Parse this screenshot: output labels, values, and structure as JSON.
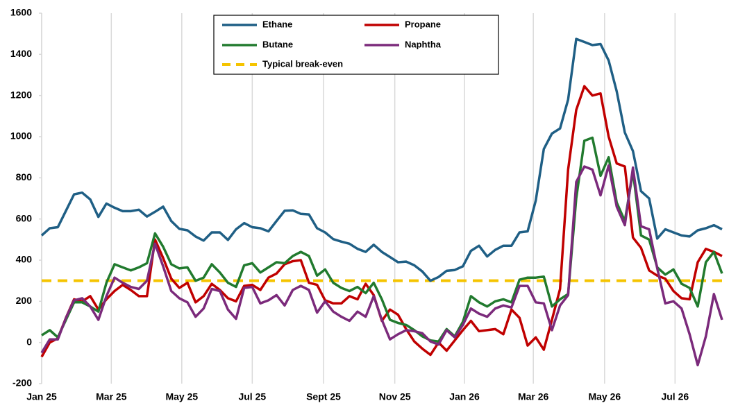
{
  "chart_data": {
    "type": "line",
    "x": [
      0,
      1,
      2,
      3,
      4,
      5,
      6,
      7,
      8,
      9,
      10,
      11,
      12,
      13,
      14,
      15,
      16,
      17,
      18,
      19,
      20,
      21,
      22,
      23,
      24,
      25,
      26,
      27,
      28,
      29,
      30,
      31,
      32,
      33,
      34,
      35,
      36,
      37,
      38,
      39,
      40,
      41,
      42,
      43,
      44,
      45,
      46,
      47,
      48,
      49,
      50,
      51,
      52,
      53,
      54,
      55,
      56,
      57,
      58,
      59,
      60,
      61,
      62,
      63,
      64,
      65,
      66,
      67,
      68,
      69,
      70,
      71,
      72,
      73,
      74,
      75,
      76,
      77,
      78,
      79,
      80,
      81,
      82,
      83,
      84
    ],
    "xlim": [
      0,
      84
    ],
    "xticks": [
      {
        "value": 0,
        "label": "Jan 25"
      },
      {
        "value": 8.6,
        "label": "Mar 25"
      },
      {
        "value": 17.3,
        "label": "May 25"
      },
      {
        "value": 26,
        "label": "Jul 25"
      },
      {
        "value": 34.8,
        "label": "Sept 25"
      },
      {
        "value": 43.6,
        "label": "Nov 25"
      },
      {
        "value": 52.2,
        "label": "Jan 26"
      },
      {
        "value": 60.7,
        "label": "Mar 26"
      },
      {
        "value": 69.5,
        "label": "May 26"
      },
      {
        "value": 78.2,
        "label": "Jul 26"
      }
    ],
    "ylim": [
      -200,
      1600
    ],
    "yticks": [
      -200,
      0,
      200,
      400,
      600,
      800,
      1000,
      1200,
      1400,
      1600
    ],
    "grid": "x",
    "series": [
      {
        "name": "Ethane",
        "color": "#1f5f85",
        "values": [
          520,
          555,
          560,
          640,
          720,
          728,
          695,
          610,
          675,
          655,
          638,
          638,
          645,
          612,
          635,
          660,
          590,
          552,
          545,
          515,
          495,
          535,
          535,
          498,
          550,
          580,
          560,
          555,
          540,
          590,
          640,
          642,
          625,
          622,
          555,
          535,
          502,
          490,
          480,
          455,
          440,
          475,
          440,
          415,
          390,
          393,
          375,
          345,
          300,
          318,
          348,
          352,
          370,
          445,
          470,
          418,
          450,
          470,
          470,
          535,
          540,
          690,
          940,
          1015,
          1040,
          1180,
          1475,
          1460,
          1445,
          1450,
          1370,
          1220,
          1020,
          930,
          735,
          700,
          505,
          550,
          535,
          520,
          515,
          545,
          555,
          570,
          550
        ]
      },
      {
        "name": "Propane",
        "color": "#c00000",
        "values": [
          -70,
          0,
          20,
          120,
          210,
          200,
          225,
          160,
          210,
          250,
          280,
          255,
          225,
          225,
          500,
          410,
          310,
          265,
          290,
          195,
          225,
          285,
          255,
          215,
          200,
          275,
          280,
          255,
          315,
          335,
          380,
          395,
          400,
          290,
          280,
          205,
          190,
          190,
          225,
          210,
          285,
          230,
          105,
          160,
          135,
          65,
          5,
          -30,
          -60,
          0,
          -40,
          10,
          60,
          105,
          55,
          60,
          65,
          40,
          160,
          120,
          -15,
          25,
          -35,
          110,
          260,
          840,
          1130,
          1245,
          1200,
          1210,
          1000,
          870,
          855,
          510,
          460,
          350,
          325,
          310,
          250,
          215,
          210,
          390,
          455,
          440,
          420
        ]
      },
      {
        "name": "Butane",
        "color": "#217a2e",
        "values": [
          35,
          60,
          25,
          110,
          195,
          195,
          175,
          150,
          290,
          380,
          365,
          350,
          365,
          385,
          530,
          465,
          380,
          360,
          365,
          300,
          315,
          380,
          340,
          290,
          270,
          375,
          385,
          340,
          365,
          390,
          385,
          420,
          440,
          420,
          325,
          355,
          290,
          265,
          250,
          270,
          240,
          290,
          210,
          110,
          95,
          85,
          60,
          30,
          10,
          5,
          65,
          30,
          100,
          225,
          195,
          175,
          200,
          210,
          195,
          305,
          315,
          315,
          320,
          175,
          210,
          235,
          700,
          980,
          995,
          810,
          900,
          680,
          590,
          830,
          520,
          500,
          365,
          330,
          355,
          285,
          265,
          175,
          390,
          440,
          335
        ]
      },
      {
        "name": "Naphtha",
        "color": "#7b2a7b",
        "values": [
          -50,
          15,
          15,
          120,
          205,
          215,
          175,
          110,
          225,
          315,
          290,
          270,
          260,
          300,
          480,
          370,
          250,
          215,
          195,
          125,
          165,
          260,
          250,
          160,
          115,
          265,
          270,
          190,
          205,
          230,
          180,
          255,
          275,
          255,
          145,
          200,
          150,
          125,
          105,
          150,
          125,
          225,
          110,
          15,
          40,
          60,
          55,
          45,
          5,
          -10,
          60,
          25,
          85,
          165,
          140,
          125,
          165,
          180,
          170,
          275,
          275,
          195,
          190,
          60,
          180,
          230,
          780,
          855,
          840,
          715,
          860,
          660,
          570,
          850,
          565,
          550,
          360,
          190,
          200,
          165,
          40,
          -110,
          30,
          235,
          110
        ]
      }
    ],
    "reference_lines": [
      {
        "name": "Typical break-even",
        "value": 300,
        "color": "#f5c400",
        "dashed": true
      }
    ]
  }
}
